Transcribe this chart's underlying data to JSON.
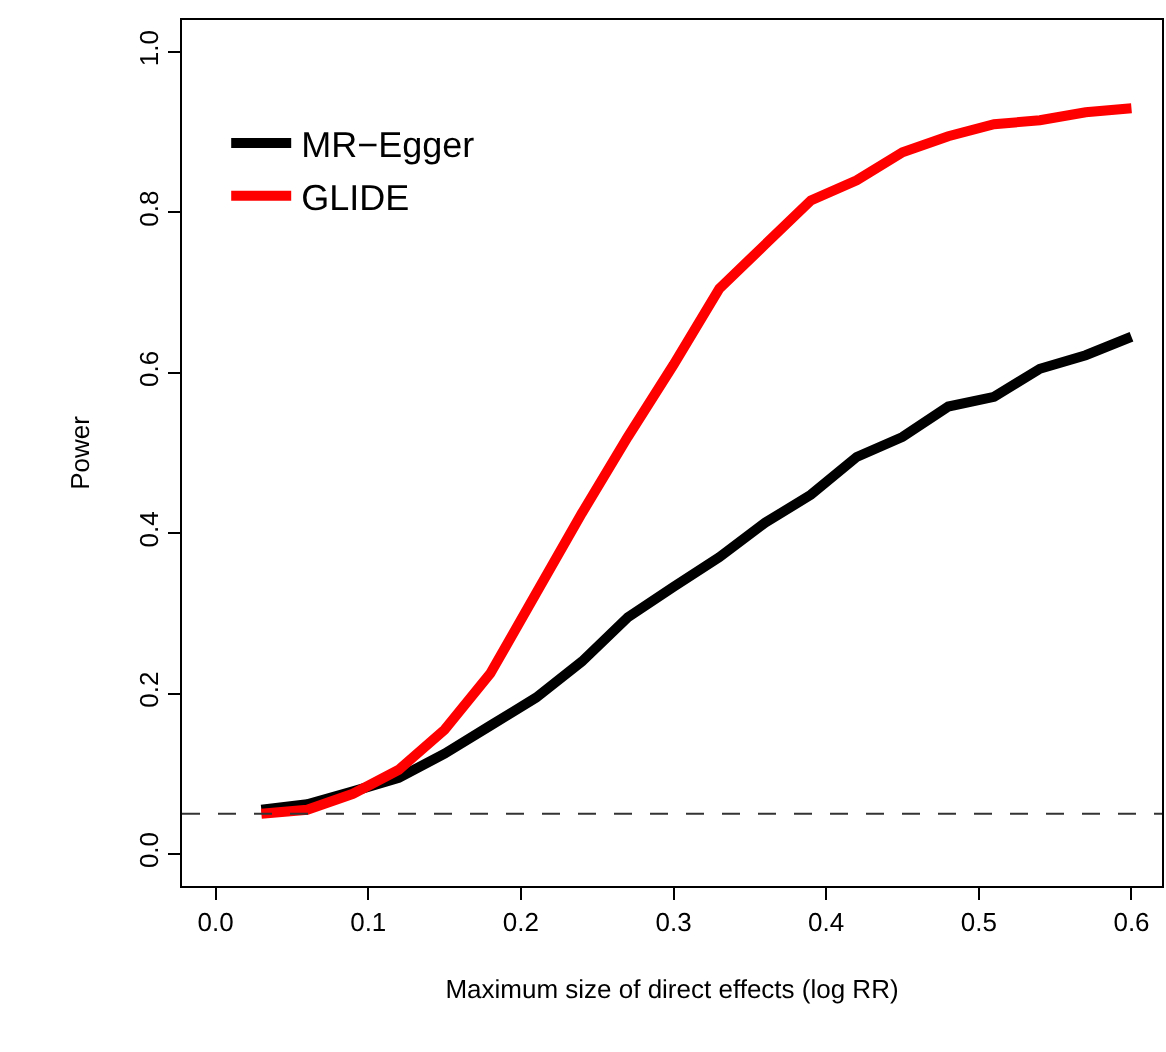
{
  "chart_data": {
    "type": "line",
    "xlabel": "Maximum size of direct effects (log RR)",
    "ylabel": "Power",
    "x": [
      0.03,
      0.06,
      0.09,
      0.12,
      0.15,
      0.18,
      0.21,
      0.24,
      0.27,
      0.3,
      0.33,
      0.36,
      0.39,
      0.42,
      0.45,
      0.48,
      0.51,
      0.54,
      0.57,
      0.6
    ],
    "series": [
      {
        "name": "MR−Egger",
        "color": "#000000",
        "values": [
          0.055,
          0.062,
          0.078,
          0.095,
          0.125,
          0.16,
          0.195,
          0.24,
          0.295,
          0.333,
          0.37,
          0.413,
          0.448,
          0.495,
          0.52,
          0.558,
          0.57,
          0.605,
          0.622,
          0.645
        ]
      },
      {
        "name": "GLIDE",
        "color": "#ff0000",
        "values": [
          0.05,
          0.055,
          0.075,
          0.105,
          0.155,
          0.225,
          0.325,
          0.425,
          0.52,
          0.61,
          0.705,
          0.76,
          0.815,
          0.84,
          0.875,
          0.895,
          0.91,
          0.915,
          0.925,
          0.93
        ]
      }
    ],
    "xlim": [
      -0.022,
      0.62
    ],
    "ylim": [
      -0.04,
      1.04
    ],
    "xticks": [
      {
        "value": 0,
        "label": "0.0"
      },
      0.1,
      0.2,
      0.3,
      0.4,
      0.5,
      0.6
    ],
    "yticks": [
      {
        "value": 0,
        "label": "0.0"
      },
      0.2,
      0.4,
      0.6,
      0.8,
      {
        "value": 1,
        "label": "1.0"
      }
    ],
    "ref_lines": [
      {
        "axis": "y",
        "value": 0.05,
        "label": null,
        "line_style": "dashed",
        "color": "#333333"
      }
    ],
    "legend": "top left",
    "marker": "none",
    "line_style": "solid"
  }
}
